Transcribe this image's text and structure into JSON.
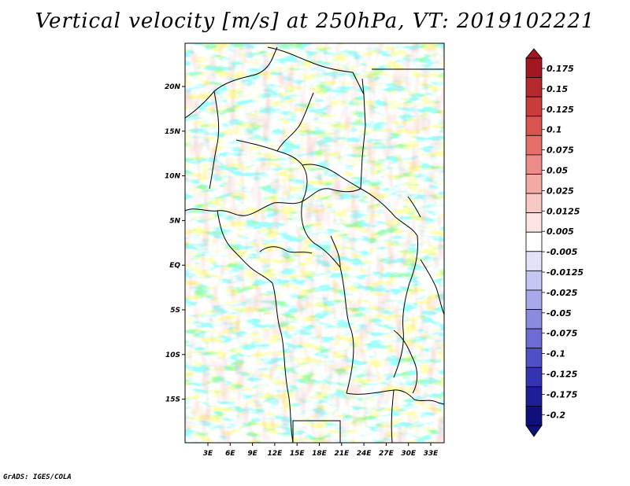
{
  "title": "Vertical velocity [m/s] at 250hPa, VT: 2019102221",
  "credit": "GrADS: IGES/COLA",
  "axes": {
    "lon_labels": [
      "3E",
      "6E",
      "9E",
      "12E",
      "15E",
      "18E",
      "21E",
      "24E",
      "27E",
      "30E",
      "33E"
    ],
    "lat_labels": [
      "20N",
      "15N",
      "10N",
      "5N",
      "EQ",
      "5S",
      "10S",
      "15S"
    ]
  },
  "colorbar": {
    "labels": [
      "0.175",
      "0.15",
      "0.125",
      "0.1",
      "0.075",
      "0.05",
      "0.025",
      "0.0125",
      "0.005",
      "-0.005",
      "-0.0125",
      "-0.025",
      "-0.05",
      "-0.075",
      "-0.1",
      "-0.125",
      "-0.175",
      "-0.2"
    ],
    "colors": [
      "#a01820",
      "#b42a2e",
      "#c83c3c",
      "#d85450",
      "#e46e68",
      "#ec8c86",
      "#f4aaa4",
      "#f8c8c4",
      "#fce4e2",
      "#ffffff",
      "#e2e2fa",
      "#c6c6f2",
      "#a8a8ea",
      "#8a8ae0",
      "#6c6cd4",
      "#5050c6",
      "#3434b0",
      "#1e1e96",
      "#10107a"
    ]
  }
}
